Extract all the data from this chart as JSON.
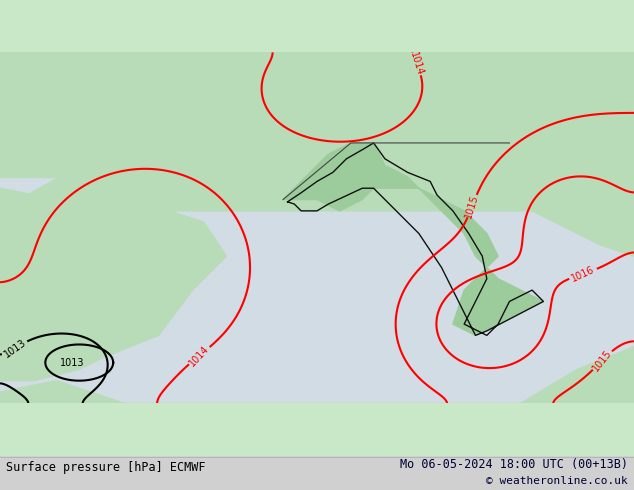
{
  "title_left": "Surface pressure [hPa] ECMWF",
  "title_right": "Mo 06-05-2024 18:00 UTC (00+13B)",
  "copyright": "© weatheronline.co.uk",
  "bg_color": "#c8e8c8",
  "land_color_high": "#90d090",
  "land_color_low": "#b0e0b0",
  "sea_color": "#d0d8e0",
  "border_color": "#222222",
  "contour_color_red": "#ff0000",
  "contour_color_black": "#000000",
  "contour_color_blue": "#0000ff",
  "label_color_red": "#ff0000",
  "label_color_black": "#000000",
  "bottom_bar_color": "#d8d8d8",
  "text_color": "#000000",
  "figsize": [
    6.34,
    4.9
  ],
  "dpi": 100,
  "extent": [
    -5.0,
    22.0,
    35.0,
    50.0
  ],
  "pressure_levels": [
    1013,
    1014,
    1015,
    1016
  ],
  "isobar_labels": {
    "1013": [
      "black"
    ],
    "1014": [
      "red"
    ],
    "1015": [
      "red"
    ],
    "1016": [
      "red"
    ]
  }
}
